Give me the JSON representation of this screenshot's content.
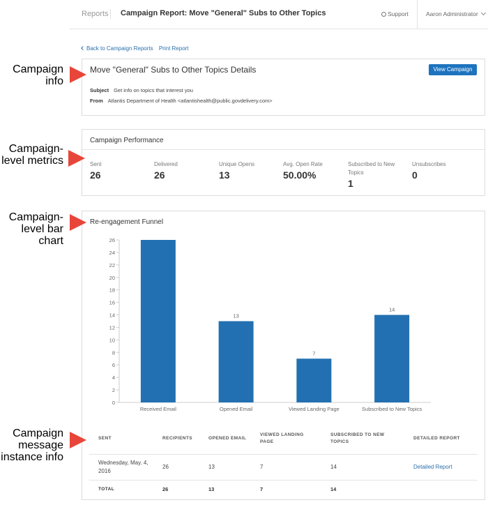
{
  "header": {
    "breadcrumb_root": "Reports",
    "title": "Campaign Report: Move \"General\" Subs to Other Topics",
    "support_label": "Support",
    "user_name": "Aaron Administrator"
  },
  "subnav": {
    "back_label": "Back to Campaign Reports",
    "print_label": "Print Report"
  },
  "campaign_info": {
    "title": "Move \"General\" Subs to Other Topics Details",
    "view_button": "View Campaign",
    "subject_label": "Subject",
    "subject_value": "Get info on topics that interest you",
    "from_label": "From",
    "from_value": "Atlantis Department of Health <atlantishealth@public.govdelivery.com>"
  },
  "performance": {
    "title": "Campaign Performance",
    "metrics": [
      {
        "label": "Sent",
        "value": "26"
      },
      {
        "label": "Delivered",
        "value": "26"
      },
      {
        "label": "Unique Opens",
        "value": "13"
      },
      {
        "label": "Avg. Open Rate",
        "value": "50.00%"
      },
      {
        "label": "Subscribed to New Topics",
        "value": "1"
      },
      {
        "label": "Unsubscribes",
        "value": "0"
      }
    ]
  },
  "funnel": {
    "title": "Re-engagement Funnel"
  },
  "chart_data": {
    "type": "bar",
    "categories": [
      "Received Email",
      "Opened Email",
      "Viewed Landing Page",
      "Subscribed to New Topics"
    ],
    "values": [
      26,
      13,
      7,
      14
    ],
    "data_labels": [
      "",
      "13",
      "7",
      "14"
    ],
    "ylim": [
      0,
      26
    ],
    "yticks": [
      0,
      2,
      4,
      6,
      8,
      10,
      12,
      14,
      16,
      18,
      20,
      22,
      24,
      26
    ],
    "bar_color": "#2270b1",
    "grid": false
  },
  "table": {
    "headers": [
      "SENT",
      "RECIPIENTS",
      "OPENED EMAIL",
      "VIEWED LANDING PAGE",
      "SUBSCRIBED TO NEW TOPICS",
      "DETAILED REPORT"
    ],
    "rows": [
      {
        "sent": "Wednesday, May. 4, 2016",
        "recipients": "26",
        "opened": "13",
        "viewed": "7",
        "subscribed": "14",
        "report": "Detailed Report"
      }
    ],
    "total": {
      "label": "TOTAL",
      "recipients": "26",
      "opened": "13",
      "viewed": "7",
      "subscribed": "14"
    }
  },
  "annotations": [
    "Campaign info",
    "Campaign-level metrics",
    "Campaign-level bar chart",
    "Campaign message instance info"
  ],
  "colors": {
    "accent": "#1e73be",
    "link": "#2a6fae",
    "annotation_arrow": "#e8463a"
  }
}
